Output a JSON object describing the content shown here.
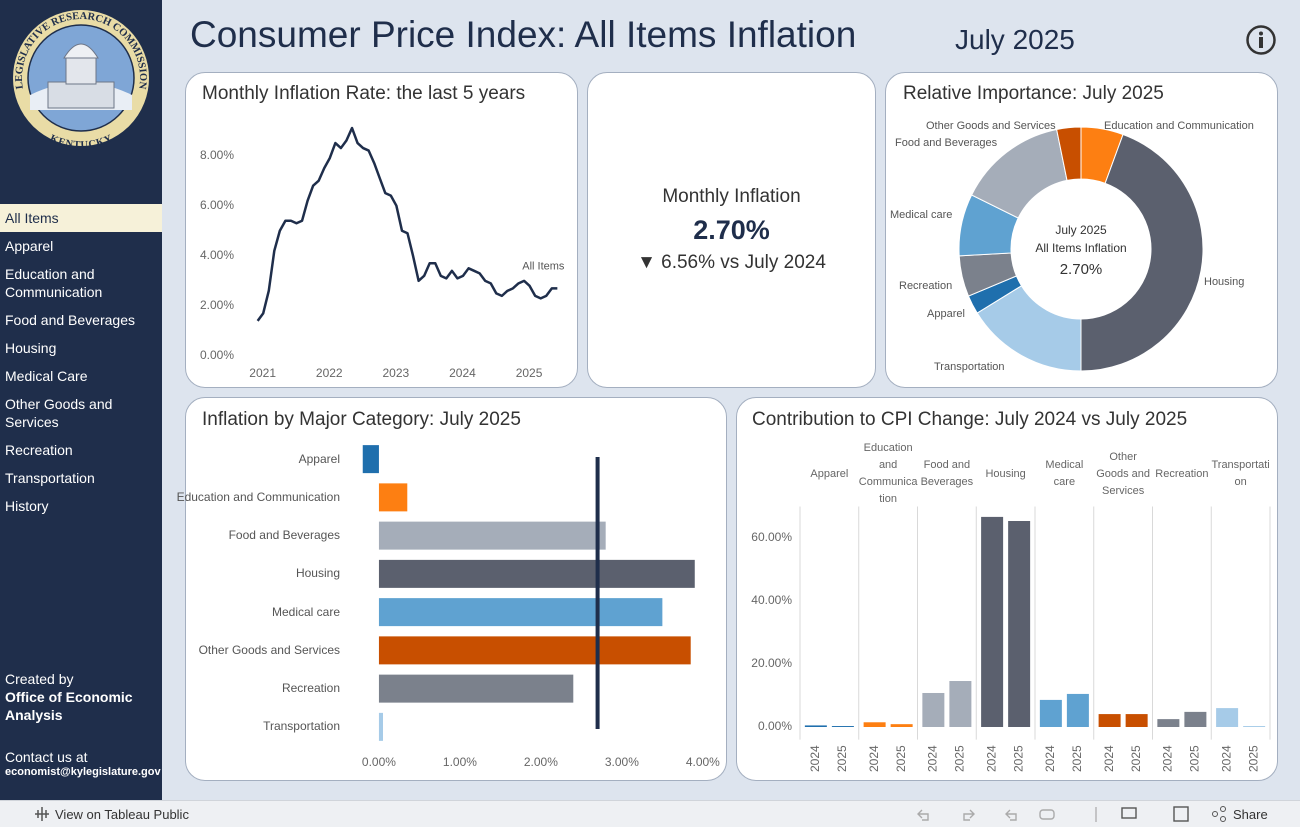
{
  "header": {
    "title": "Consumer Price Index: All Items Inflation",
    "period": "July 2025"
  },
  "sidebar": {
    "logo": {
      "top_text": "LEGISLATIVE RESEARCH COMMISSION",
      "bottom_text": "KENTUCKY"
    },
    "nav": [
      "All Items",
      "Apparel",
      "Education and Communication",
      "Food and Beverages",
      "Housing",
      "Medical Care",
      "Other Goods and Services",
      "Recreation",
      "Transportation",
      "History"
    ],
    "credit": {
      "label": "Created by",
      "org": "Office of Economic Analysis",
      "contact_label": "Contact us at",
      "email": "economist@kylegislature.gov"
    }
  },
  "kpi": {
    "title": "Monthly Inflation",
    "value": "2.70%",
    "change": "▼ 6.56% vs July 2024"
  },
  "toolbar": {
    "view_link": "View on Tableau Public",
    "share": "Share"
  },
  "chart_data": [
    {
      "type": "line",
      "title": "Monthly Inflation Rate: the last 5 years",
      "x": [
        2021,
        2021.083,
        2021.167,
        2021.25,
        2021.333,
        2021.417,
        2021.5,
        2021.583,
        2021.667,
        2021.75,
        2021.833,
        2021.917,
        2022,
        2022.083,
        2022.167,
        2022.25,
        2022.333,
        2022.417,
        2022.5,
        2022.583,
        2022.667,
        2022.75,
        2022.833,
        2022.917,
        2023,
        2023.083,
        2023.167,
        2023.25,
        2023.333,
        2023.417,
        2023.5,
        2023.583,
        2023.667,
        2023.75,
        2023.833,
        2023.917,
        2024,
        2024.083,
        2024.167,
        2024.25,
        2024.333,
        2024.417,
        2024.5,
        2024.583,
        2024.667,
        2024.75,
        2024.833,
        2024.917,
        2025,
        2025.083,
        2025.167,
        2025.25,
        2025.333,
        2025.417,
        2025.5
      ],
      "series": [
        {
          "name": "All Items",
          "color": "#1f2e4b",
          "values": [
            1.4,
            1.7,
            2.6,
            4.2,
            5.0,
            5.4,
            5.4,
            5.3,
            5.4,
            6.2,
            6.8,
            7.0,
            7.5,
            7.9,
            8.5,
            8.3,
            8.6,
            9.1,
            8.5,
            8.3,
            8.2,
            7.7,
            7.1,
            6.5,
            6.4,
            6.0,
            5.0,
            4.9,
            4.0,
            3.0,
            3.2,
            3.7,
            3.7,
            3.2,
            3.1,
            3.4,
            3.1,
            3.2,
            3.5,
            3.4,
            3.3,
            3.0,
            2.9,
            2.5,
            2.4,
            2.6,
            2.7,
            2.9,
            3.0,
            2.8,
            2.4,
            2.3,
            2.4,
            2.7,
            2.7
          ]
        }
      ],
      "xlim": [
        2020.75,
        2025.75
      ],
      "xticks": [
        2021,
        2022,
        2023,
        2024,
        2025
      ],
      "ylim": [
        0,
        9.5
      ],
      "yticks": [
        {
          "value": 0,
          "label": "0.00%"
        },
        {
          "value": 2,
          "label": "2.00%"
        },
        {
          "value": 4,
          "label": "4.00%"
        },
        {
          "value": 6,
          "label": "6.00%"
        },
        {
          "value": 8,
          "label": "8.00%"
        }
      ]
    },
    {
      "type": "donut",
      "title": "Relative Importance: July 2025",
      "categories": [
        "Education and Communication",
        "Housing",
        "Transportation",
        "Apparel",
        "Recreation",
        "Medical care",
        "Food and Beverages",
        "Other Goods and Services"
      ],
      "values": [
        5.6,
        44.4,
        16.2,
        2.5,
        5.4,
        8.2,
        14.5,
        3.2
      ],
      "colors": [
        "#fd7f12",
        "#5b606e",
        "#a6cbe8",
        "#1f6fad",
        "#7b818c",
        "#5fa2d1",
        "#a5adb9",
        "#c84f00"
      ],
      "center_text": [
        "July 2025",
        "All Items Inflation",
        "2.70%"
      ]
    },
    {
      "type": "hbar",
      "title": "Inflation by Major Category: July 2025",
      "categories": [
        "Apparel",
        "Education and Communication",
        "Food and Beverages",
        "Housing",
        "Medical care",
        "Other Goods and Services",
        "Recreation",
        "Transportation"
      ],
      "values": [
        -0.2,
        0.35,
        2.8,
        3.9,
        3.5,
        3.85,
        2.4,
        0.05
      ],
      "colors": [
        "#1f6fad",
        "#fd7f12",
        "#a5adb9",
        "#5b606e",
        "#5fa2d1",
        "#c84f00",
        "#7b818c",
        "#a6cbe8"
      ],
      "reference_line": 2.7,
      "xlim": [
        -0.35,
        4.15
      ],
      "xticks": [
        {
          "value": 0,
          "label": "0.00%"
        },
        {
          "value": 1,
          "label": "1.00%"
        },
        {
          "value": 2,
          "label": "2.00%"
        },
        {
          "value": 3,
          "label": "3.00%"
        },
        {
          "value": 4,
          "label": "4.00%"
        }
      ]
    },
    {
      "type": "grouped_bar",
      "title": "Contribution to CPI Change: July 2024 vs July 2025",
      "categories": [
        "Apparel",
        "Education and Communication",
        "Food and Beverages",
        "Housing",
        "Medical care",
        "Other Goods and Services",
        "Recreation",
        "Transportation"
      ],
      "colors": [
        "#1f6fad",
        "#fd7f12",
        "#a5adb9",
        "#5b606e",
        "#5fa2d1",
        "#c84f00",
        "#7b818c",
        "#a6cbe8"
      ],
      "series": [
        {
          "name": "2024",
          "values": [
            0.5,
            1.5,
            10.8,
            66.7,
            8.6,
            4.1,
            2.5,
            6.0
          ]
        },
        {
          "name": "2025",
          "values": [
            0.3,
            0.9,
            14.6,
            65.4,
            10.5,
            4.1,
            4.8,
            0.3
          ]
        }
      ],
      "ylim": [
        -4,
        70
      ],
      "yticks": [
        {
          "value": 0,
          "label": "0.00%"
        },
        {
          "value": 20,
          "label": "20.00%"
        },
        {
          "value": 40,
          "label": "40.00%"
        },
        {
          "value": 60,
          "label": "60.00%"
        }
      ]
    }
  ]
}
